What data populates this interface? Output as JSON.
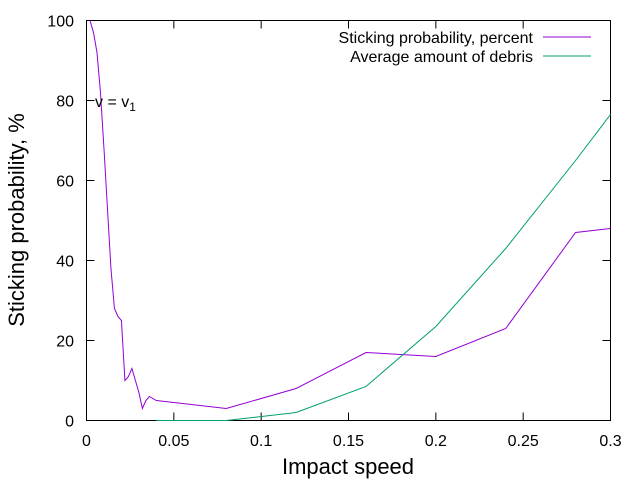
{
  "chart_data": {
    "type": "line",
    "title": "",
    "xlabel": "Impact speed",
    "ylabel": "Sticking probability, %",
    "xlim": [
      0,
      0.3
    ],
    "ylim": [
      0,
      100
    ],
    "xticks": [
      0,
      0.05,
      0.1,
      0.15,
      0.2,
      0.25,
      0.3
    ],
    "xtick_labels": [
      "0",
      "0.05",
      "0.1",
      "0.15",
      "0.2",
      "0.25",
      "0.3"
    ],
    "yticks": [
      0,
      20,
      40,
      60,
      80,
      100
    ],
    "ytick_labels": [
      "0",
      "20",
      "40",
      "60",
      "80",
      "100"
    ],
    "grid": false,
    "legend_position": "top-right",
    "series": [
      {
        "name": "Sticking probability, percent",
        "color": "#9400d3",
        "x": [
          0.002,
          0.004,
          0.006,
          0.008,
          0.01,
          0.012,
          0.014,
          0.016,
          0.018,
          0.02,
          0.022,
          0.024,
          0.026,
          0.028,
          0.03,
          0.032,
          0.034,
          0.036,
          0.038,
          0.04,
          0.08,
          0.12,
          0.16,
          0.2,
          0.24,
          0.28,
          0.3
        ],
        "y": [
          100,
          97,
          92,
          82,
          68,
          53,
          38,
          28,
          26,
          25,
          10,
          11,
          13,
          10,
          7,
          3,
          5,
          6,
          5.5,
          5,
          3,
          8,
          17,
          16,
          23,
          47,
          48
        ]
      },
      {
        "name": "Average amount of debris",
        "color": "#009e73",
        "x": [
          0.04,
          0.08,
          0.12,
          0.16,
          0.2,
          0.24,
          0.28,
          0.3
        ],
        "y": [
          0,
          0,
          2,
          8.5,
          23.5,
          43,
          65,
          76.5
        ]
      }
    ],
    "annotations": [
      {
        "text": "v = v",
        "subscript": "1",
        "x": 0.005,
        "y": 78
      }
    ]
  }
}
